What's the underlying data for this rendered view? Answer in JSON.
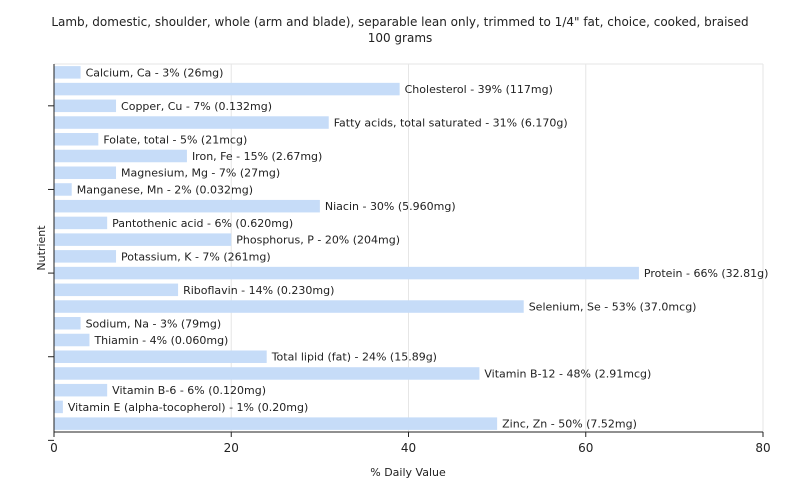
{
  "chart_data": {
    "type": "bar",
    "orientation": "horizontal",
    "title_line1": "Lamb, domestic, shoulder, whole (arm and blade), separable lean only, trimmed to 1/4\" fat, choice, cooked, braised",
    "title_line2": "100 grams",
    "xlabel": "% Daily Value",
    "ylabel": "Nutrient",
    "xlim": [
      0,
      80
    ],
    "xticks": [
      0,
      20,
      40,
      60,
      80
    ],
    "grid": true,
    "colors": {
      "bar": "#c6dcf8",
      "axis": "#222222",
      "grid": "#e6e6e6"
    },
    "categories": [
      "Calcium, Ca",
      "Cholesterol",
      "Copper, Cu",
      "Fatty acids, total saturated",
      "Folate, total",
      "Iron, Fe",
      "Magnesium, Mg",
      "Manganese, Mn",
      "Niacin",
      "Pantothenic acid",
      "Phosphorus, P",
      "Potassium, K",
      "Protein",
      "Riboflavin",
      "Selenium, Se",
      "Sodium, Na",
      "Thiamin",
      "Total lipid (fat)",
      "Vitamin B-12",
      "Vitamin B-6",
      "Vitamin E (alpha-tocopherol)",
      "Zinc, Zn"
    ],
    "values": [
      3,
      39,
      7,
      31,
      5,
      15,
      7,
      2,
      30,
      6,
      20,
      7,
      66,
      14,
      53,
      3,
      4,
      24,
      48,
      6,
      1,
      50
    ],
    "labels": [
      "Calcium, Ca - 3% (26mg)",
      "Cholesterol - 39% (117mg)",
      "Copper, Cu - 7% (0.132mg)",
      "Fatty acids, total saturated - 31% (6.170g)",
      "Folate, total - 5% (21mcg)",
      "Iron, Fe - 15% (2.67mg)",
      "Magnesium, Mg - 7% (27mg)",
      "Manganese, Mn - 2% (0.032mg)",
      "Niacin - 30% (5.960mg)",
      "Pantothenic acid - 6% (0.620mg)",
      "Phosphorus, P - 20% (204mg)",
      "Potassium, K - 7% (261mg)",
      "Protein - 66% (32.81g)",
      "Riboflavin - 14% (0.230mg)",
      "Selenium, Se - 53% (37.0mcg)",
      "Sodium, Na - 3% (79mg)",
      "Thiamin - 4% (0.060mg)",
      "Total lipid (fat) - 24% (15.89g)",
      "Vitamin B-12 - 48% (2.91mcg)",
      "Vitamin B-6 - 6% (0.120mg)",
      "Vitamin E (alpha-tocopherol) - 1% (0.20mg)",
      "Zinc, Zn - 50% (7.52mg)"
    ]
  }
}
